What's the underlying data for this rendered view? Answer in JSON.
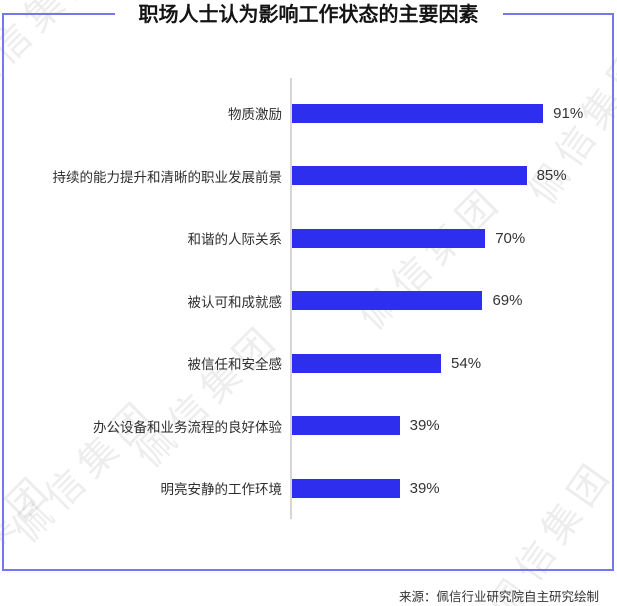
{
  "title": "职场人士认为影响工作状态的主要因素",
  "source": "来源：佩信行业研究院自主研究绘制",
  "watermark": {
    "text": "佩信集团"
  },
  "colors": {
    "bar": "#2e2eee",
    "frame": "#7577f0",
    "title": "#141414",
    "label": "#2e2e2e",
    "value": "#333333",
    "axis": "#d6d6d6"
  },
  "chart_data": {
    "type": "bar",
    "orientation": "horizontal",
    "title": "职场人士认为影响工作状态的主要因素",
    "categories": [
      "物质激励",
      "持续的能力提升和清晰的职业发展前景",
      "和谐的人际关系",
      "被认可和成就感",
      "被信任和安全感",
      "办公设备和业务流程的良好体验",
      "明亮安静的工作环境"
    ],
    "values": [
      91,
      85,
      70,
      69,
      54,
      39,
      39
    ],
    "value_suffix": "%",
    "xlim": [
      0,
      100
    ],
    "xlabel": "",
    "ylabel": "",
    "grid": false,
    "legend": false,
    "data_labels": true
  }
}
